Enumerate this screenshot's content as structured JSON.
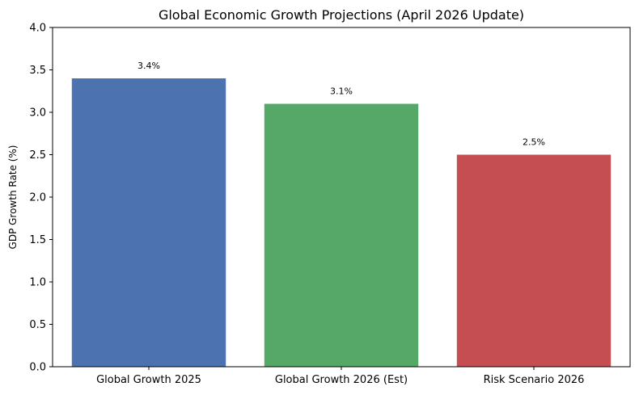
{
  "chart_data": {
    "type": "bar",
    "title": "Global Economic Growth Projections (April 2026 Update)",
    "xlabel": "",
    "ylabel": "GDP Growth Rate (%)",
    "ylim": [
      0,
      4.0
    ],
    "yticks": [
      "0.0",
      "0.5",
      "1.0",
      "1.5",
      "2.0",
      "2.5",
      "3.0",
      "3.5",
      "4.0"
    ],
    "categories": [
      "Global Growth 2025",
      "Global Growth 2026 (Est)",
      "Risk Scenario 2026"
    ],
    "values": [
      3.4,
      3.1,
      2.5
    ],
    "data_labels": [
      "3.4%",
      "3.1%",
      "2.5%"
    ],
    "colors": [
      "#4c72b0",
      "#55a868",
      "#c44e52"
    ],
    "grid": false,
    "legend": "none"
  }
}
